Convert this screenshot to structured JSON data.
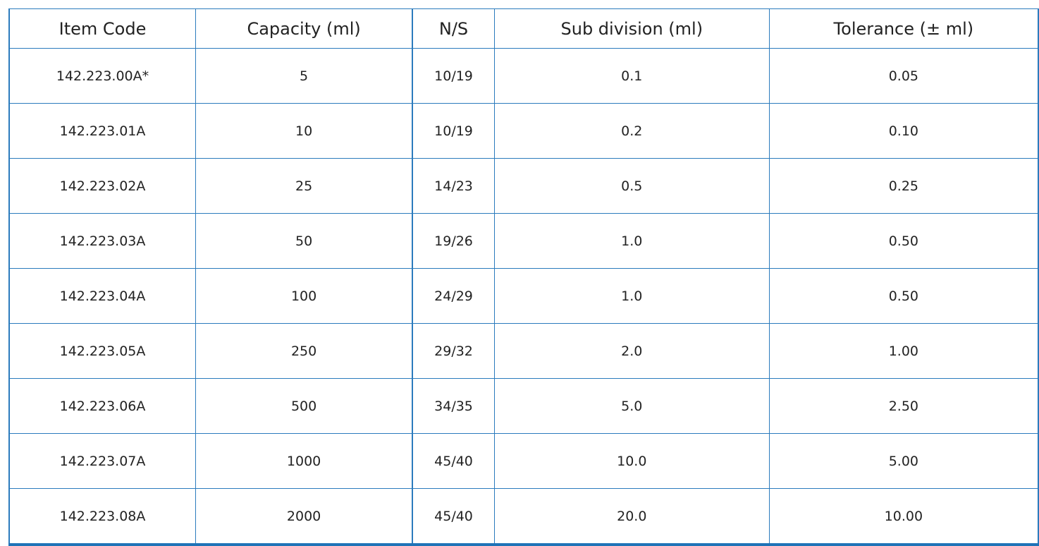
{
  "table": {
    "headers": [
      "Item Code",
      "Capacity (ml)",
      "N/S",
      "Sub division (ml)",
      "Tolerance (± ml)"
    ],
    "rows": [
      [
        "142.223.00A*",
        "5",
        "10/19",
        "0.1",
        "0.05"
      ],
      [
        "142.223.01A",
        "10",
        "10/19",
        "0.2",
        "0.10"
      ],
      [
        "142.223.02A",
        "25",
        "14/23",
        "0.5",
        "0.25"
      ],
      [
        "142.223.03A",
        "50",
        "19/26",
        "1.0",
        "0.50"
      ],
      [
        "142.223.04A",
        "100",
        "24/29",
        "1.0",
        "0.50"
      ],
      [
        "142.223.05A",
        "250",
        "29/32",
        "2.0",
        "1.00"
      ],
      [
        "142.223.06A",
        "500",
        "34/35",
        "5.0",
        "2.50"
      ],
      [
        "142.223.07A",
        "1000",
        "45/40",
        "10.0",
        "5.00"
      ],
      [
        "142.223.08A",
        "2000",
        "45/40",
        "20.0",
        "10.00"
      ]
    ]
  },
  "colors": {
    "border": "#2b7bbd",
    "text": "#222222",
    "background": "#ffffff"
  }
}
